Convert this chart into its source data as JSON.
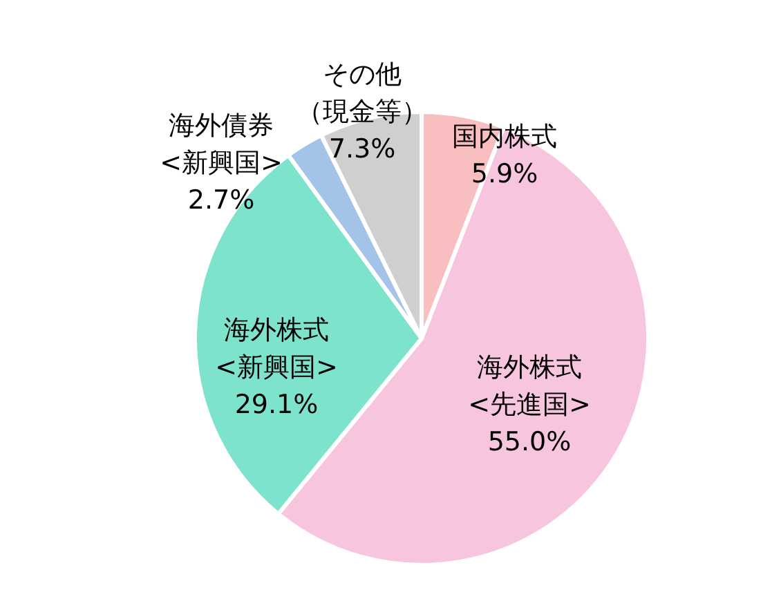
{
  "chart_data": {
    "type": "pie",
    "categories": [
      "国内株式",
      "海外株式<先進国>",
      "海外株式<新興国>",
      "海外債券<新興国>",
      "その他（現金等）"
    ],
    "values": [
      5.9,
      55.0,
      29.1,
      2.7,
      7.3
    ],
    "value_labels": [
      "5.9%",
      "55.0%",
      "29.1%",
      "2.7%",
      "7.3%"
    ],
    "colors": [
      "#f9bfc0",
      "#f8c5de",
      "#7de3cd",
      "#a4c3e8",
      "#cfcfcf"
    ]
  }
}
